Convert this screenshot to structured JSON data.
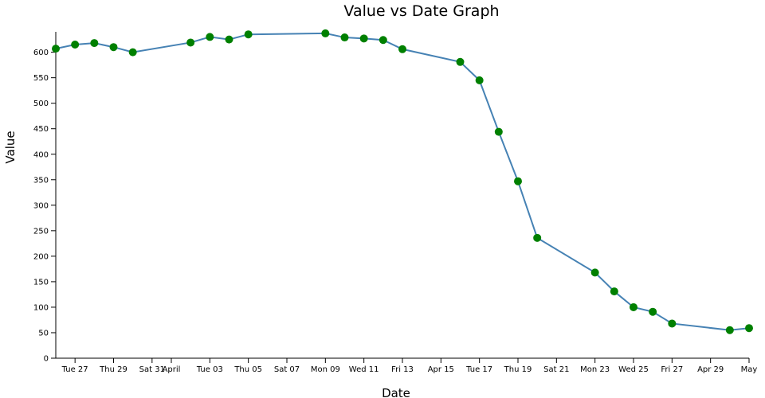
{
  "chart_data": {
    "type": "line",
    "title": "Value vs Date Graph",
    "xlabel": "Date",
    "ylabel": "Value",
    "ylim": [
      0,
      640
    ],
    "xlim": [
      "2018-03-26",
      "2018-05-01"
    ],
    "grid": false,
    "legend": "none",
    "line_color": "#4682b4",
    "point_color": "#008000",
    "yticks": [
      0,
      50,
      100,
      150,
      200,
      250,
      300,
      350,
      400,
      450,
      500,
      550,
      600
    ],
    "xticks": [
      {
        "date": "2018-03-27",
        "label": "Tue 27"
      },
      {
        "date": "2018-03-29",
        "label": "Thu 29"
      },
      {
        "date": "2018-03-31",
        "label": "Sat 31"
      },
      {
        "date": "2018-04-01",
        "label": "April"
      },
      {
        "date": "2018-04-03",
        "label": "Tue 03"
      },
      {
        "date": "2018-04-05",
        "label": "Thu 05"
      },
      {
        "date": "2018-04-07",
        "label": "Sat 07"
      },
      {
        "date": "2018-04-09",
        "label": "Mon 09"
      },
      {
        "date": "2018-04-11",
        "label": "Wed 11"
      },
      {
        "date": "2018-04-13",
        "label": "Fri 13"
      },
      {
        "date": "2018-04-15",
        "label": "Apr 15"
      },
      {
        "date": "2018-04-17",
        "label": "Tue 17"
      },
      {
        "date": "2018-04-19",
        "label": "Thu 19"
      },
      {
        "date": "2018-04-21",
        "label": "Sat 21"
      },
      {
        "date": "2018-04-23",
        "label": "Mon 23"
      },
      {
        "date": "2018-04-25",
        "label": "Wed 25"
      },
      {
        "date": "2018-04-27",
        "label": "Fri 27"
      },
      {
        "date": "2018-04-29",
        "label": "Apr 29"
      },
      {
        "date": "2018-05-01",
        "label": "May"
      }
    ],
    "points": [
      {
        "x": "2018-03-26",
        "y": 607
      },
      {
        "x": "2018-03-27",
        "y": 615
      },
      {
        "x": "2018-03-28",
        "y": 618
      },
      {
        "x": "2018-03-29",
        "y": 610
      },
      {
        "x": "2018-03-30",
        "y": 600
      },
      {
        "x": "2018-04-02",
        "y": 619
      },
      {
        "x": "2018-04-03",
        "y": 630
      },
      {
        "x": "2018-04-04",
        "y": 625
      },
      {
        "x": "2018-04-05",
        "y": 635
      },
      {
        "x": "2018-04-09",
        "y": 637
      },
      {
        "x": "2018-04-10",
        "y": 629
      },
      {
        "x": "2018-04-11",
        "y": 627
      },
      {
        "x": "2018-04-12",
        "y": 624
      },
      {
        "x": "2018-04-13",
        "y": 606
      },
      {
        "x": "2018-04-16",
        "y": 581
      },
      {
        "x": "2018-04-17",
        "y": 545
      },
      {
        "x": "2018-04-18",
        "y": 444
      },
      {
        "x": "2018-04-19",
        "y": 347
      },
      {
        "x": "2018-04-20",
        "y": 236
      },
      {
        "x": "2018-04-23",
        "y": 168
      },
      {
        "x": "2018-04-24",
        "y": 131
      },
      {
        "x": "2018-04-25",
        "y": 100
      },
      {
        "x": "2018-04-26",
        "y": 91
      },
      {
        "x": "2018-04-27",
        "y": 68
      },
      {
        "x": "2018-04-30",
        "y": 55
      },
      {
        "x": "2018-05-01",
        "y": 59
      }
    ]
  }
}
